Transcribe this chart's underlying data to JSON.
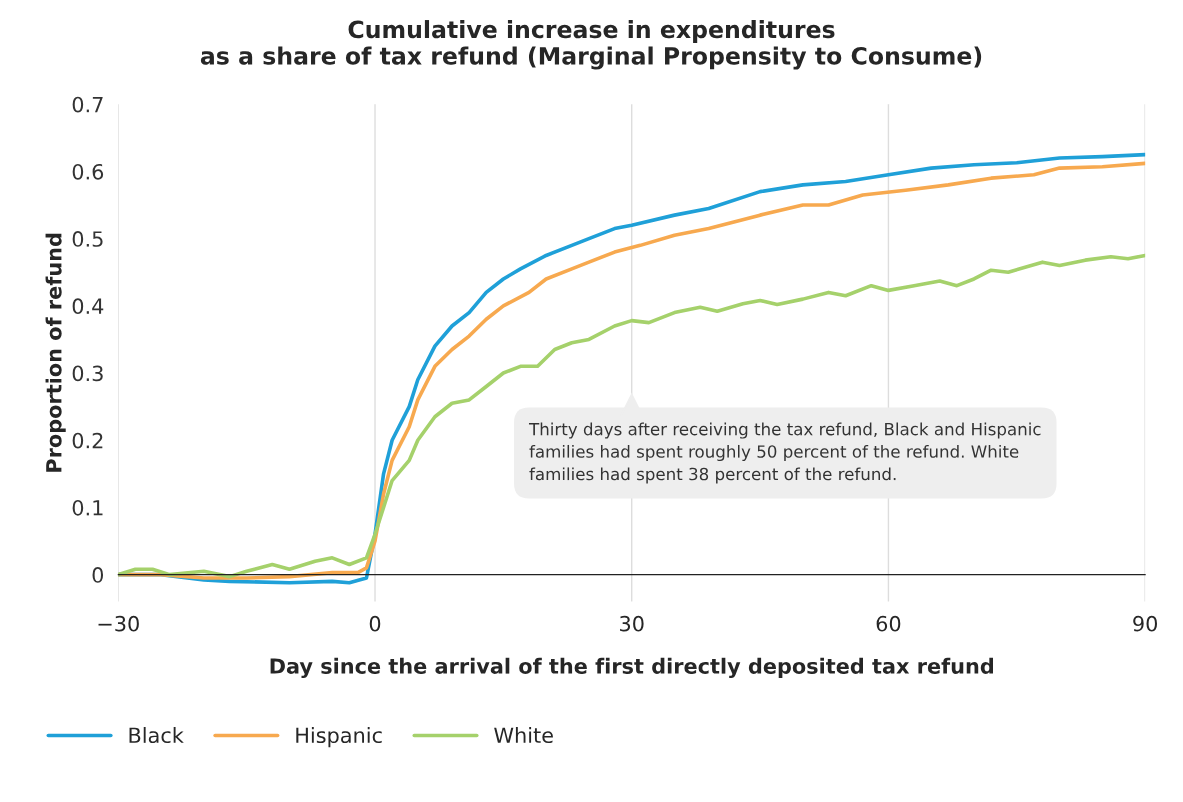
{
  "chart_data": {
    "type": "line",
    "title": "Cumulative increase in expenditures\nas a share of tax refund (Marginal Propensity to Consume)",
    "xlabel": "Day since the arrival of the first directly deposited tax refund",
    "ylabel": "Proportion of refund",
    "xlim": [
      -30,
      90
    ],
    "xticks": [
      {
        "value": -30,
        "label": "−30"
      },
      0,
      30,
      60,
      90
    ],
    "ylim": [
      -0.04,
      0.7
    ],
    "yticks": [
      0,
      0.1,
      0.2,
      0.3,
      0.4,
      0.5,
      0.6,
      0.7
    ],
    "grid": "x",
    "legend": "bottom left",
    "marker": "none",
    "line_style": "solid",
    "annotations": [
      "Thirty days after receiving the tax refund, Black and Hispanic families had spent roughly 50 percent of the refund. White families had spent 38 percent of the refund."
    ],
    "series": [
      {
        "name": "Black",
        "color": "#1fa0d8",
        "x": [
          -30,
          -25,
          -20,
          -17,
          -10,
          -5,
          -3,
          -1,
          0,
          1,
          2,
          4,
          5,
          7,
          9,
          11,
          13,
          15,
          17,
          20,
          23,
          25,
          28,
          30,
          35,
          39,
          45,
          50,
          55,
          60,
          65,
          70,
          75,
          80,
          85,
          90
        ],
        "values": [
          0,
          0,
          -0.008,
          -0.01,
          -0.012,
          -0.01,
          -0.012,
          -0.005,
          0.06,
          0.15,
          0.2,
          0.25,
          0.29,
          0.34,
          0.37,
          0.39,
          0.42,
          0.44,
          0.455,
          0.475,
          0.49,
          0.5,
          0.515,
          0.52,
          0.535,
          0.545,
          0.57,
          0.58,
          0.585,
          0.595,
          0.605,
          0.61,
          0.613,
          0.62,
          0.622,
          0.625
        ]
      },
      {
        "name": "Hispanic",
        "color": "#f7a94f",
        "x": [
          -30,
          -25,
          -20,
          -15,
          -10,
          -5,
          -2,
          -1,
          0,
          1,
          2,
          4,
          5,
          7,
          9,
          11,
          13,
          15,
          18,
          20,
          23,
          25,
          28,
          31,
          35,
          39,
          45,
          50,
          53,
          57,
          62,
          67,
          72,
          77,
          80,
          85,
          90
        ],
        "values": [
          0,
          0,
          -0.005,
          -0.005,
          -0.003,
          0.003,
          0.003,
          0.01,
          0.05,
          0.12,
          0.17,
          0.22,
          0.26,
          0.31,
          0.335,
          0.355,
          0.38,
          0.4,
          0.42,
          0.44,
          0.455,
          0.465,
          0.48,
          0.49,
          0.505,
          0.515,
          0.535,
          0.55,
          0.55,
          0.565,
          0.572,
          0.58,
          0.59,
          0.595,
          0.605,
          0.607,
          0.612
        ]
      },
      {
        "name": "White",
        "color": "#a5d16b",
        "x": [
          -30,
          -28,
          -26,
          -24,
          -20,
          -17,
          -15,
          -12,
          -10,
          -7,
          -5,
          -3,
          -1,
          0,
          1,
          2,
          4,
          5,
          7,
          9,
          11,
          13,
          15,
          17,
          19,
          21,
          23,
          25,
          28,
          30,
          32,
          35,
          38,
          40,
          43,
          45,
          47,
          50,
          53,
          55,
          58,
          60,
          63,
          66,
          68,
          70,
          72,
          74,
          78,
          80,
          83,
          86,
          88,
          90
        ],
        "values": [
          0,
          0.008,
          0.008,
          0,
          0.005,
          -0.003,
          0.005,
          0.015,
          0.008,
          0.02,
          0.025,
          0.015,
          0.025,
          0.06,
          0.1,
          0.14,
          0.17,
          0.2,
          0.235,
          0.255,
          0.26,
          0.28,
          0.3,
          0.31,
          0.31,
          0.335,
          0.345,
          0.35,
          0.37,
          0.378,
          0.375,
          0.39,
          0.398,
          0.392,
          0.403,
          0.408,
          0.402,
          0.41,
          0.42,
          0.415,
          0.43,
          0.423,
          0.43,
          0.437,
          0.43,
          0.44,
          0.453,
          0.45,
          0.465,
          0.46,
          0.468,
          0.473,
          0.47,
          0.475
        ]
      }
    ]
  }
}
